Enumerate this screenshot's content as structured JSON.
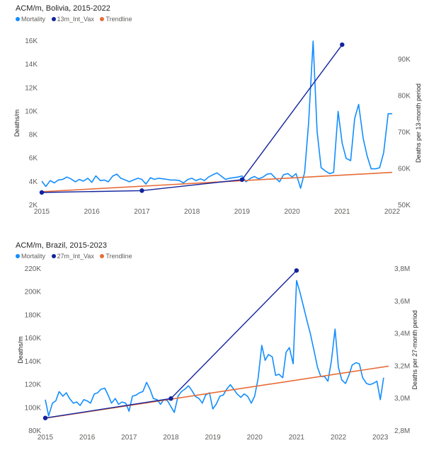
{
  "chart_data": [
    {
      "type": "line",
      "title": "ACM/m, Bolivia, 2015-2022",
      "xlabel": "",
      "ylabel": "Deaths/m",
      "y2label": "Deaths per 13-month period",
      "xlim": [
        2015,
        2022
      ],
      "ylim": [
        2000,
        16000
      ],
      "y2lim": [
        50000,
        95000
      ],
      "x_ticks": [
        {
          "v": 2015,
          "label": "2015"
        },
        {
          "v": 2016,
          "label": "2016"
        },
        {
          "v": 2017,
          "label": "2017"
        },
        {
          "v": 2018,
          "label": "2018"
        },
        {
          "v": 2019,
          "label": "2019"
        },
        {
          "v": 2020,
          "label": "2020"
        },
        {
          "v": 2021,
          "label": "2021"
        },
        {
          "v": 2022,
          "label": "2022"
        }
      ],
      "y_ticks": [
        {
          "v": 2000,
          "label": "2K"
        },
        {
          "v": 4000,
          "label": "4K"
        },
        {
          "v": 6000,
          "label": "6K"
        },
        {
          "v": 8000,
          "label": "8K"
        },
        {
          "v": 10000,
          "label": "10K"
        },
        {
          "v": 12000,
          "label": "12K"
        },
        {
          "v": 14000,
          "label": "14K"
        },
        {
          "v": 16000,
          "label": "16K"
        }
      ],
      "y2_ticks": [
        {
          "v": 50000,
          "label": "50K"
        },
        {
          "v": 60000,
          "label": "60K"
        },
        {
          "v": 70000,
          "label": "70K"
        },
        {
          "v": 80000,
          "label": "80K"
        },
        {
          "v": 90000,
          "label": "90K"
        }
      ],
      "legend": [
        {
          "label": "Mortality",
          "color": "#118dff"
        },
        {
          "label": "13m_Int_Vax",
          "color": "#12239e"
        },
        {
          "label": "Trendline",
          "color": "#e66c37"
        }
      ],
      "mortality": {
        "color": "#118dff",
        "x": [
          2015.0,
          2015.08,
          2015.17,
          2015.25,
          2015.33,
          2015.42,
          2015.5,
          2015.58,
          2015.67,
          2015.75,
          2015.83,
          2015.92,
          2016.0,
          2016.08,
          2016.17,
          2016.25,
          2016.33,
          2016.42,
          2016.5,
          2016.58,
          2016.67,
          2016.75,
          2016.83,
          2016.92,
          2017.0,
          2017.08,
          2017.17,
          2017.25,
          2017.33,
          2017.42,
          2017.5,
          2017.58,
          2017.67,
          2017.75,
          2017.83,
          2017.92,
          2018.0,
          2018.08,
          2018.17,
          2018.25,
          2018.33,
          2018.42,
          2018.5,
          2018.58,
          2018.67,
          2018.75,
          2018.83,
          2018.92,
          2019.0,
          2019.08,
          2019.17,
          2019.25,
          2019.33,
          2019.42,
          2019.5,
          2019.58,
          2019.67,
          2019.75,
          2019.83,
          2019.92,
          2020.0,
          2020.08,
          2020.17,
          2020.25,
          2020.33,
          2020.42,
          2020.5,
          2020.58,
          2020.67,
          2020.75,
          2020.83,
          2020.92,
          2021.0,
          2021.08,
          2021.17,
          2021.25,
          2021.33,
          2021.42,
          2021.5,
          2021.58,
          2021.67,
          2021.75,
          2021.83,
          2021.92,
          2022.0
        ],
        "y": [
          4050,
          3600,
          4100,
          3900,
          4150,
          4200,
          4400,
          4250,
          4000,
          4200,
          4050,
          4300,
          3950,
          4500,
          4100,
          4150,
          4000,
          4500,
          4650,
          4300,
          4150,
          4000,
          4150,
          4300,
          4200,
          3800,
          4350,
          4200,
          4300,
          4250,
          4200,
          4150,
          4150,
          4100,
          3900,
          4200,
          4300,
          4100,
          4250,
          4100,
          4400,
          4600,
          4750,
          4500,
          4200,
          4300,
          4350,
          4400,
          4500,
          4000,
          4300,
          4450,
          4250,
          4400,
          4650,
          4700,
          4300,
          4000,
          4600,
          4700,
          4400,
          4700,
          3450,
          4800,
          9000,
          16000,
          8300,
          5200,
          4900,
          4700,
          4800,
          10000,
          7300,
          6000,
          5800,
          9400,
          10600,
          7700,
          6200,
          5100,
          5100,
          5200,
          6500,
          9800,
          9800
        ]
      },
      "vax": {
        "color": "#12239e",
        "x": [
          2015.0,
          2017.0,
          2019.0,
          2021.0
        ],
        "y2": [
          53500,
          54000,
          57000,
          94000
        ]
      },
      "trend": {
        "color": "#e66c37",
        "x": [
          2015.0,
          2022.0
        ],
        "y": [
          3150,
          4800
        ]
      }
    },
    {
      "type": "line",
      "title": "ACM/m, Brazil, 2015-2023",
      "xlabel": "",
      "ylabel": "Deaths/m",
      "y2label": "Deaths per 27-month period",
      "xlim": [
        2015,
        2023.2
      ],
      "ylim": [
        80000,
        220000
      ],
      "y2lim": [
        2800000,
        3800000
      ],
      "x_ticks": [
        {
          "v": 2015,
          "label": "2015"
        },
        {
          "v": 2016,
          "label": "2016"
        },
        {
          "v": 2017,
          "label": "2017"
        },
        {
          "v": 2018,
          "label": "2018"
        },
        {
          "v": 2019,
          "label": "2019"
        },
        {
          "v": 2020,
          "label": "2020"
        },
        {
          "v": 2021,
          "label": "2021"
        },
        {
          "v": 2022,
          "label": "2022"
        },
        {
          "v": 2023,
          "label": "2023"
        }
      ],
      "y_ticks": [
        {
          "v": 80000,
          "label": "80K"
        },
        {
          "v": 100000,
          "label": "100K"
        },
        {
          "v": 120000,
          "label": "120K"
        },
        {
          "v": 140000,
          "label": "140K"
        },
        {
          "v": 160000,
          "label": "160K"
        },
        {
          "v": 180000,
          "label": "180K"
        },
        {
          "v": 200000,
          "label": "200K"
        },
        {
          "v": 220000,
          "label": "220K"
        }
      ],
      "y2_ticks": [
        {
          "v": 2800000,
          "label": "2,8M"
        },
        {
          "v": 3000000,
          "label": "3,0M"
        },
        {
          "v": 3200000,
          "label": "3,2M"
        },
        {
          "v": 3400000,
          "label": "3,4M"
        },
        {
          "v": 3600000,
          "label": "3,6M"
        },
        {
          "v": 3800000,
          "label": "3,8M"
        }
      ],
      "legend": [
        {
          "label": "Mortality",
          "color": "#118dff"
        },
        {
          "label": "27m_Int_Vax",
          "color": "#12239e"
        },
        {
          "label": "Trendline",
          "color": "#e66c37"
        }
      ],
      "mortality": {
        "color": "#118dff",
        "x": [
          2015.0,
          2015.08,
          2015.17,
          2015.25,
          2015.33,
          2015.42,
          2015.5,
          2015.58,
          2015.67,
          2015.75,
          2015.83,
          2015.92,
          2016.0,
          2016.08,
          2016.17,
          2016.25,
          2016.33,
          2016.42,
          2016.5,
          2016.58,
          2016.67,
          2016.75,
          2016.83,
          2016.92,
          2017.0,
          2017.08,
          2017.17,
          2017.25,
          2017.33,
          2017.42,
          2017.5,
          2017.58,
          2017.67,
          2017.75,
          2017.83,
          2017.92,
          2018.0,
          2018.08,
          2018.17,
          2018.25,
          2018.33,
          2018.42,
          2018.5,
          2018.58,
          2018.67,
          2018.75,
          2018.83,
          2018.92,
          2019.0,
          2019.08,
          2019.17,
          2019.25,
          2019.33,
          2019.42,
          2019.5,
          2019.58,
          2019.67,
          2019.75,
          2019.83,
          2019.92,
          2020.0,
          2020.08,
          2020.17,
          2020.25,
          2020.33,
          2020.42,
          2020.5,
          2020.58,
          2020.67,
          2020.75,
          2020.83,
          2020.92,
          2021.0,
          2021.08,
          2021.17,
          2021.25,
          2021.33,
          2021.42,
          2021.5,
          2021.58,
          2021.67,
          2021.75,
          2021.83,
          2021.92,
          2022.0,
          2022.08,
          2022.17,
          2022.25,
          2022.33,
          2022.42,
          2022.5,
          2022.58,
          2022.67,
          2022.75,
          2022.83,
          2022.92,
          2023.0,
          2023.08
        ],
        "y": [
          107000,
          93000,
          104000,
          106000,
          114000,
          110000,
          113000,
          108000,
          104000,
          105000,
          102000,
          107000,
          106000,
          104000,
          112000,
          113000,
          116000,
          117000,
          111000,
          104000,
          108000,
          103000,
          105000,
          104000,
          97000,
          110000,
          111000,
          113000,
          114000,
          122000,
          116000,
          108000,
          107000,
          103000,
          107000,
          106000,
          101000,
          96000,
          110000,
          114000,
          116000,
          119000,
          115000,
          110000,
          108000,
          104000,
          111000,
          113000,
          99000,
          103000,
          110000,
          111000,
          116000,
          120000,
          116000,
          112000,
          109000,
          112000,
          110000,
          104000,
          110000,
          125000,
          154000,
          141000,
          146000,
          144000,
          128000,
          129000,
          126000,
          148000,
          152000,
          138000,
          210000,
          200000,
          187000,
          175000,
          164000,
          149000,
          135000,
          127000,
          127000,
          123000,
          140000,
          168000,
          135000,
          124000,
          121000,
          128000,
          137000,
          139000,
          138000,
          126000,
          121000,
          120000,
          121000,
          123000,
          107000,
          126000
        ]
      },
      "vax": {
        "color": "#12239e",
        "x": [
          2015.0,
          2018.0,
          2021.0
        ],
        "y2": [
          2880000,
          3000000,
          3790000
        ]
      },
      "trend": {
        "color": "#e66c37",
        "x": [
          2015.0,
          2023.2
        ],
        "y": [
          91000,
          136000
        ]
      }
    }
  ]
}
